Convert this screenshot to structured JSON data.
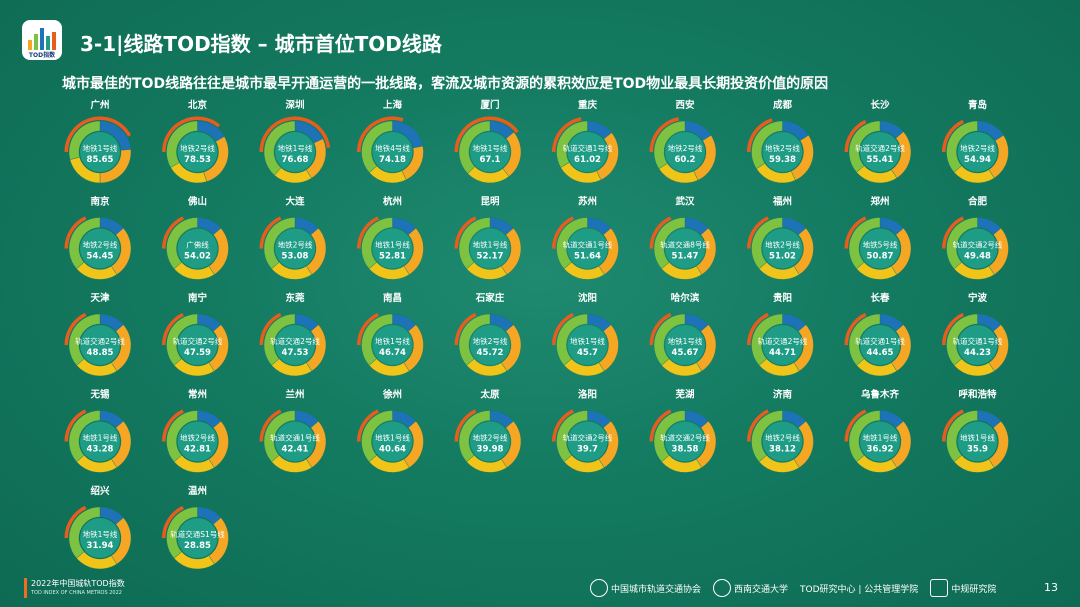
{
  "header": {
    "logo_text": "TOD指数",
    "title": "3-1|线路TOD指数 – 城市首位TOD线路",
    "subtitle": "城市最佳的TOD线路往往是城市最早开通运营的一批线路，客流及城市资源的累积效应是TOD物业最具长期投资价值的原因"
  },
  "colors": {
    "blue": "#1d72b8",
    "orange": "#f5a623",
    "yellow": "#f0c419",
    "green": "#7ec242",
    "teal": "#1e9c85",
    "red": "#e85d1e",
    "darkred": "#c8401a"
  },
  "chart_data": {
    "type": "donut-grid",
    "items": [
      {
        "city": "广州",
        "line": "地铁1号线",
        "score": "85.65",
        "s": [
          0.18,
          0.2,
          0.16,
          0.22
        ],
        "e": 0.42
      },
      {
        "city": "北京",
        "line": "地铁2号线",
        "score": "78.53",
        "s": [
          0.14,
          0.24,
          0.18,
          0.28
        ],
        "e": 0.36
      },
      {
        "city": "深圳",
        "line": "地铁1号线",
        "score": "76.68",
        "s": [
          0.14,
          0.18,
          0.16,
          0.3
        ],
        "e": 0.48
      },
      {
        "city": "上海",
        "line": "地铁4号线",
        "score": "74.18",
        "s": [
          0.18,
          0.17,
          0.17,
          0.3
        ],
        "e": 0.3
      },
      {
        "city": "厦门",
        "line": "地铁1号线",
        "score": "67.1",
        "s": [
          0.12,
          0.22,
          0.2,
          0.32
        ],
        "e": 0.4
      },
      {
        "city": "重庆",
        "line": "轨道交通1号线",
        "score": "61.02",
        "s": [
          0.12,
          0.24,
          0.2,
          0.28
        ],
        "e": 0.22
      },
      {
        "city": "西安",
        "line": "地铁2号线",
        "score": "60.2",
        "s": [
          0.14,
          0.24,
          0.2,
          0.3
        ],
        "e": 0.22
      },
      {
        "city": "成都",
        "line": "地铁2号线",
        "score": "59.38",
        "s": [
          0.14,
          0.24,
          0.2,
          0.3
        ],
        "e": 0.2
      },
      {
        "city": "长沙",
        "line": "轨道交通2号线",
        "score": "55.41",
        "s": [
          0.12,
          0.24,
          0.2,
          0.32
        ],
        "e": 0.18
      },
      {
        "city": "青岛",
        "line": "地铁2号线",
        "score": "54.94",
        "s": [
          0.14,
          0.22,
          0.2,
          0.32
        ],
        "e": 0.18
      },
      {
        "city": "南京",
        "line": "地铁2号线",
        "score": "54.45",
        "s": [
          0.12,
          0.24,
          0.2,
          0.32
        ],
        "e": 0.18
      },
      {
        "city": "佛山",
        "line": "广佛线",
        "score": "54.02",
        "s": [
          0.12,
          0.24,
          0.2,
          0.32
        ],
        "e": 0.18
      },
      {
        "city": "大连",
        "line": "地铁2号线",
        "score": "53.08",
        "s": [
          0.12,
          0.24,
          0.2,
          0.32
        ],
        "e": 0.18
      },
      {
        "city": "杭州",
        "line": "地铁1号线",
        "score": "52.81",
        "s": [
          0.12,
          0.24,
          0.2,
          0.32
        ],
        "e": 0.18
      },
      {
        "city": "昆明",
        "line": "地铁1号线",
        "score": "52.17",
        "s": [
          0.12,
          0.24,
          0.2,
          0.32
        ],
        "e": 0.18
      },
      {
        "city": "苏州",
        "line": "轨道交通1号线",
        "score": "51.64",
        "s": [
          0.12,
          0.24,
          0.2,
          0.32
        ],
        "e": 0.18
      },
      {
        "city": "武汉",
        "line": "轨道交通8号线",
        "score": "51.47",
        "s": [
          0.12,
          0.24,
          0.2,
          0.32
        ],
        "e": 0.18
      },
      {
        "city": "福州",
        "line": "地铁2号线",
        "score": "51.02",
        "s": [
          0.12,
          0.24,
          0.2,
          0.32
        ],
        "e": 0.18
      },
      {
        "city": "郑州",
        "line": "地铁5号线",
        "score": "50.87",
        "s": [
          0.12,
          0.24,
          0.2,
          0.32
        ],
        "e": 0.18
      },
      {
        "city": "合肥",
        "line": "轨道交通2号线",
        "score": "49.48",
        "s": [
          0.12,
          0.24,
          0.2,
          0.32
        ],
        "e": 0.18
      },
      {
        "city": "天津",
        "line": "轨道交通2号线",
        "score": "48.85",
        "s": [
          0.12,
          0.24,
          0.2,
          0.32
        ],
        "e": 0.18
      },
      {
        "city": "南宁",
        "line": "轨道交通2号线",
        "score": "47.59",
        "s": [
          0.12,
          0.24,
          0.2,
          0.32
        ],
        "e": 0.18
      },
      {
        "city": "东莞",
        "line": "轨道交通2号线",
        "score": "47.53",
        "s": [
          0.12,
          0.24,
          0.2,
          0.32
        ],
        "e": 0.18
      },
      {
        "city": "南昌",
        "line": "地铁1号线",
        "score": "46.74",
        "s": [
          0.12,
          0.24,
          0.2,
          0.32
        ],
        "e": 0.18
      },
      {
        "city": "石家庄",
        "line": "地铁2号线",
        "score": "45.72",
        "s": [
          0.12,
          0.24,
          0.2,
          0.32
        ],
        "e": 0.18
      },
      {
        "city": "沈阳",
        "line": "地铁1号线",
        "score": "45.7",
        "s": [
          0.12,
          0.24,
          0.2,
          0.32
        ],
        "e": 0.18
      },
      {
        "city": "哈尔滨",
        "line": "地铁1号线",
        "score": "45.67",
        "s": [
          0.12,
          0.24,
          0.2,
          0.32
        ],
        "e": 0.18
      },
      {
        "city": "贵阳",
        "line": "轨道交通2号线",
        "score": "44.71",
        "s": [
          0.12,
          0.24,
          0.2,
          0.32
        ],
        "e": 0.18
      },
      {
        "city": "长春",
        "line": "轨道交通1号线",
        "score": "44.65",
        "s": [
          0.12,
          0.24,
          0.2,
          0.32
        ],
        "e": 0.18
      },
      {
        "city": "宁波",
        "line": "轨道交通1号线",
        "score": "44.23",
        "s": [
          0.12,
          0.24,
          0.2,
          0.32
        ],
        "e": 0.18
      },
      {
        "city": "无锡",
        "line": "地铁1号线",
        "score": "43.28",
        "s": [
          0.12,
          0.24,
          0.2,
          0.32
        ],
        "e": 0.18
      },
      {
        "city": "常州",
        "line": "地铁2号线",
        "score": "42.81",
        "s": [
          0.12,
          0.24,
          0.2,
          0.32
        ],
        "e": 0.18
      },
      {
        "city": "兰州",
        "line": "轨道交通1号线",
        "score": "42.41",
        "s": [
          0.12,
          0.24,
          0.2,
          0.32
        ],
        "e": 0.18
      },
      {
        "city": "徐州",
        "line": "地铁1号线",
        "score": "40.64",
        "s": [
          0.12,
          0.24,
          0.2,
          0.32
        ],
        "e": 0.18
      },
      {
        "city": "太原",
        "line": "地铁2号线",
        "score": "39.98",
        "s": [
          0.12,
          0.24,
          0.2,
          0.32
        ],
        "e": 0.18
      },
      {
        "city": "洛阳",
        "line": "轨道交通2号线",
        "score": "39.7",
        "s": [
          0.12,
          0.24,
          0.2,
          0.32
        ],
        "e": 0.18
      },
      {
        "city": "芜湖",
        "line": "轨道交通2号线",
        "score": "38.58",
        "s": [
          0.12,
          0.24,
          0.2,
          0.32
        ],
        "e": 0.18
      },
      {
        "city": "济南",
        "line": "地铁2号线",
        "score": "38.12",
        "s": [
          0.12,
          0.24,
          0.2,
          0.32
        ],
        "e": 0.18
      },
      {
        "city": "乌鲁木齐",
        "line": "地铁1号线",
        "score": "36.92",
        "s": [
          0.12,
          0.24,
          0.2,
          0.32
        ],
        "e": 0.18
      },
      {
        "city": "呼和浩特",
        "line": "地铁1号线",
        "score": "35.9",
        "s": [
          0.12,
          0.24,
          0.2,
          0.32
        ],
        "e": 0.18
      },
      {
        "city": "绍兴",
        "line": "地铁1号线",
        "score": "31.94",
        "s": [
          0.12,
          0.24,
          0.2,
          0.32
        ],
        "e": 0.18
      },
      {
        "city": "温州",
        "line": "轨道交通S1号线",
        "score": "28.85",
        "s": [
          0.12,
          0.24,
          0.2,
          0.32
        ],
        "e": 0.18
      }
    ]
  },
  "footer": {
    "report_title": "2022年中国城轨TOD指数",
    "report_subtitle": "TOD INDEX OF CHINA METROS 2022",
    "org1": "中国城市轨道交通协会",
    "org2": "西南交通大学",
    "org3": "TOD研究中心 | 公共管理学院",
    "org4": "中规研究院",
    "page": "13"
  }
}
